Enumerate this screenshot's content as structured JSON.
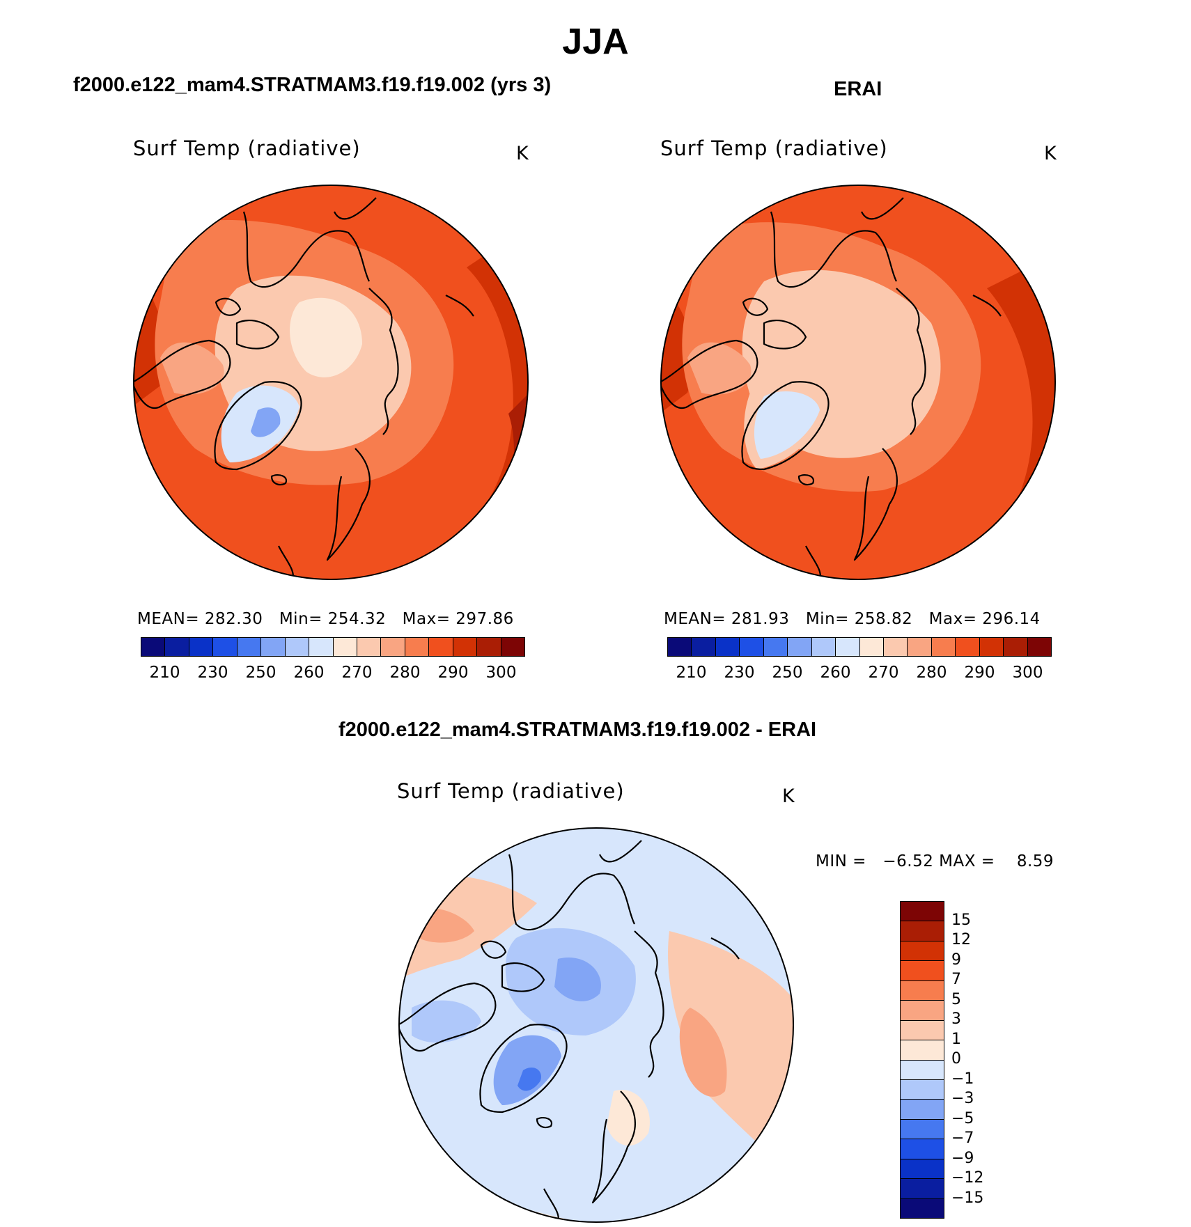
{
  "main_title": "JJA",
  "left": {
    "subtitle": "f2000.e122_mam4.STRATMAM3.f19.f19.002 (yrs 3)",
    "variable": "Surf Temp (radiative)",
    "unit": "K",
    "stats": {
      "mean_label": "MEAN=",
      "mean": "282.30",
      "min_label": "Min=",
      "min": "254.32",
      "max_label": "Max=",
      "max": "297.86"
    }
  },
  "right": {
    "subtitle": "ERAI",
    "variable": "Surf Temp (radiative)",
    "unit": "K",
    "stats": {
      "mean_label": "MEAN=",
      "mean": "281.93",
      "min_label": "Min=",
      "min": "258.82",
      "max_label": "Max=",
      "max": "296.14"
    }
  },
  "diff": {
    "subtitle": "f2000.e122_mam4.STRATMAM3.f19.f19.002 - ERAI",
    "variable": "Surf Temp (radiative)",
    "unit": "K",
    "min_label": "MIN =",
    "min": "−6.52",
    "max_label": "MAX =",
    "max": "8.59"
  },
  "abs_colorbar": {
    "colors": [
      "#0a0a78",
      "#0a1ea0",
      "#0a32c8",
      "#1e50e6",
      "#4678f0",
      "#82a5f5",
      "#afc8fa",
      "#d7e6fc",
      "#fde8d7",
      "#fbc9af",
      "#f9a582",
      "#f77d4e",
      "#f0501e",
      "#d23205",
      "#aa1e05",
      "#7d0505"
    ],
    "ticks": [
      "210",
      "230",
      "250",
      "260",
      "270",
      "280",
      "290",
      "300"
    ]
  },
  "diff_colorbar": {
    "colors": [
      "#7d0505",
      "#aa1e05",
      "#d23205",
      "#f0501e",
      "#f77d4e",
      "#f9a582",
      "#fbc9af",
      "#fde8d7",
      "#d7e6fc",
      "#afc8fa",
      "#82a5f5",
      "#4678f0",
      "#1e50e6",
      "#0a32c8",
      "#0a1ea0",
      "#0a0a78"
    ],
    "ticks": [
      "15",
      "12",
      "9",
      "7",
      "5",
      "3",
      "1",
      "0",
      "−1",
      "−3",
      "−5",
      "−7",
      "−9",
      "−12",
      "−15"
    ]
  }
}
